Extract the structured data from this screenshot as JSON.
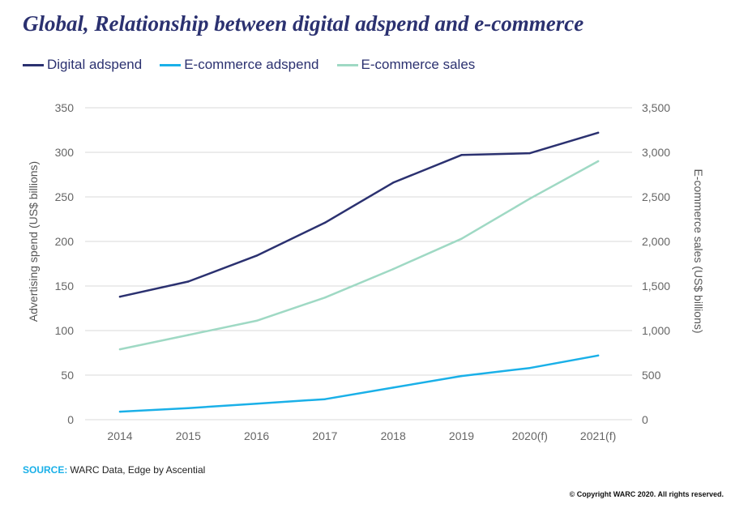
{
  "header": {
    "title": "Global, Relationship between digital adspend and e-commerce"
  },
  "legend": [
    {
      "label": "Digital adspend",
      "color": "#2b3170"
    },
    {
      "label": "E-commerce adspend",
      "color": "#1ab0e8"
    },
    {
      "label": "E-commerce sales",
      "color": "#9fd9c4"
    }
  ],
  "chart_data": {
    "type": "line",
    "categories": [
      "2014",
      "2015",
      "2016",
      "2017",
      "2018",
      "2019",
      "2020(f)",
      "2021(f)"
    ],
    "series": [
      {
        "name": "Digital adspend",
        "axis": "left",
        "color": "#2b3170",
        "values": [
          138,
          155,
          184,
          221,
          266,
          297,
          299,
          322
        ]
      },
      {
        "name": "E-commerce adspend",
        "axis": "left",
        "color": "#1ab0e8",
        "values": [
          9,
          13,
          18,
          23,
          36,
          49,
          58,
          72
        ]
      },
      {
        "name": "E-commerce sales",
        "axis": "right",
        "color": "#9fd9c4",
        "values": [
          790,
          950,
          1110,
          1370,
          1690,
          2030,
          2480,
          2900
        ]
      }
    ],
    "ylabel": "Advertising spend (US$ billions)",
    "y2label": "E-commerce sales (US$ billions)",
    "ylim": [
      0,
      350
    ],
    "y2lim": [
      0,
      3500
    ],
    "yticks": [
      "0",
      "50",
      "100",
      "150",
      "200",
      "250",
      "300",
      "350"
    ],
    "y2ticks": [
      "0",
      "500",
      "1,000",
      "1,500",
      "2,000",
      "2,500",
      "3,000",
      "3,500"
    ],
    "grid": true,
    "legend_position": "top-left"
  },
  "footer": {
    "source_label": "SOURCE:",
    "source_text": "WARC Data, Edge by Ascential",
    "copyright": "© Copyright WARC 2020. All rights reserved."
  }
}
